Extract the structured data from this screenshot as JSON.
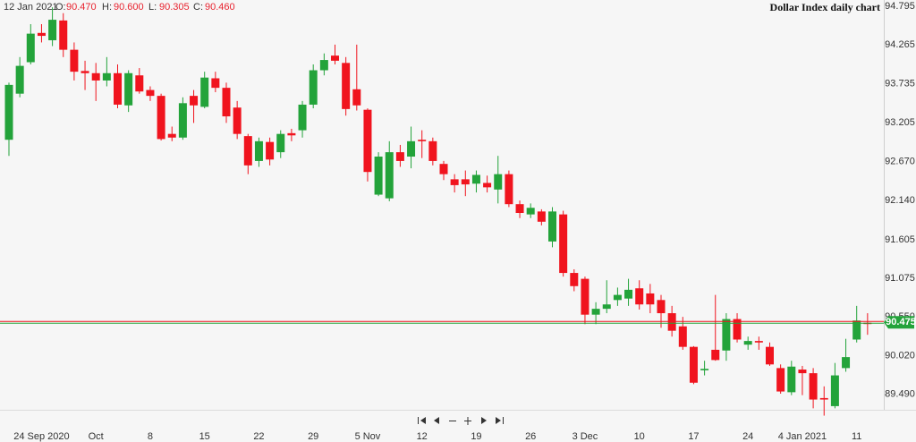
{
  "chart_data": {
    "type": "candlestick",
    "title": "Dollar Index daily chart",
    "header": {
      "date": "12 Jan 2021",
      "open_label": "O:",
      "open": {
        "value": 90.47,
        "label": "90.470"
      },
      "high_label": "H:",
      "high": {
        "value": 90.6,
        "label": "90.600"
      },
      "low_label": "L:",
      "low": {
        "value": 90.305,
        "label": "90.305"
      },
      "close_label": "C:",
      "close": {
        "value": 90.46,
        "label": "90.460"
      }
    },
    "categories": [
      null,
      null,
      null,
      "24 Sep 2020",
      null,
      null,
      null,
      null,
      "Oct",
      null,
      null,
      null,
      null,
      "8",
      null,
      null,
      null,
      null,
      "15",
      null,
      null,
      null,
      null,
      "22",
      null,
      null,
      null,
      null,
      "29",
      null,
      null,
      null,
      null,
      "5 Nov",
      null,
      null,
      null,
      null,
      "12",
      null,
      null,
      null,
      null,
      "19",
      null,
      null,
      null,
      null,
      "26",
      null,
      null,
      null,
      null,
      "3 Dec",
      null,
      null,
      null,
      null,
      "10",
      null,
      null,
      null,
      null,
      "17",
      null,
      null,
      null,
      null,
      "24",
      null,
      null,
      null,
      null,
      "4 Jan 2021",
      null,
      null,
      null,
      null,
      "11",
      null
    ],
    "open": [
      92.97,
      93.6,
      94.03,
      94.43,
      94.33,
      94.6,
      94.2,
      93.91,
      93.88,
      93.78,
      93.88,
      93.44,
      93.85,
      93.65,
      93.57,
      93.05,
      93.0,
      93.57,
      93.42,
      93.81,
      93.68,
      93.41,
      93.02,
      92.68,
      92.94,
      92.8,
      93.06,
      93.1,
      93.45,
      93.92,
      94.12,
      94.02,
      93.66,
      93.38,
      92.22,
      92.17,
      92.8,
      92.74,
      92.97,
      92.95,
      92.64,
      92.43,
      92.43,
      92.37,
      92.38,
      92.29,
      92.5,
      92.09,
      91.95,
      91.99,
      91.58,
      91.95,
      91.15,
      91.07,
      90.58,
      90.66,
      90.78,
      90.8,
      90.94,
      90.87,
      90.78,
      90.6,
      90.42,
      90.14,
      89.82,
      90.1,
      90.09,
      90.52,
      90.17,
      90.22,
      90.14,
      89.85,
      89.52,
      89.83,
      89.78,
      89.44,
      89.33,
      89.85,
      90.24,
      90.47
    ],
    "high": [
      93.75,
      94.1,
      94.55,
      94.55,
      94.78,
      94.7,
      94.3,
      94.05,
      94.02,
      94.1,
      94.0,
      93.92,
      93.95,
      93.7,
      93.6,
      93.15,
      93.55,
      93.65,
      93.9,
      93.9,
      93.75,
      93.5,
      93.05,
      93.0,
      93.0,
      93.1,
      93.12,
      93.5,
      94.0,
      94.15,
      94.27,
      94.1,
      94.27,
      93.4,
      92.8,
      92.95,
      92.9,
      93.15,
      93.1,
      93.0,
      92.68,
      92.5,
      92.55,
      92.55,
      92.48,
      92.75,
      92.55,
      92.14,
      92.1,
      92.02,
      92.05,
      92.0,
      91.2,
      91.1,
      90.75,
      91.05,
      90.95,
      91.07,
      91.05,
      91.0,
      90.85,
      90.7,
      90.55,
      90.15,
      89.95,
      90.85,
      90.6,
      90.6,
      90.28,
      90.28,
      90.2,
      89.9,
      89.95,
      89.88,
      89.85,
      89.6,
      89.92,
      90.25,
      90.7,
      90.6
    ],
    "low": [
      92.75,
      93.55,
      94.0,
      94.3,
      94.25,
      94.1,
      93.78,
      93.65,
      93.5,
      93.7,
      93.4,
      93.35,
      93.6,
      93.5,
      92.96,
      92.95,
      92.97,
      93.2,
      93.4,
      93.62,
      93.2,
      92.98,
      92.5,
      92.6,
      92.62,
      92.72,
      92.95,
      93.0,
      93.4,
      93.85,
      94.0,
      93.3,
      93.37,
      92.4,
      92.2,
      92.13,
      92.6,
      92.58,
      92.72,
      92.62,
      92.42,
      92.25,
      92.2,
      92.25,
      92.25,
      92.1,
      92.05,
      91.9,
      91.9,
      91.8,
      91.5,
      91.1,
      90.9,
      90.45,
      90.45,
      90.6,
      90.7,
      90.7,
      90.65,
      90.6,
      90.4,
      90.28,
      90.1,
      89.63,
      89.75,
      89.95,
      89.95,
      90.2,
      90.1,
      90.1,
      89.88,
      89.5,
      89.48,
      89.48,
      89.3,
      89.2,
      89.3,
      89.8,
      90.2,
      90.305
    ],
    "close": [
      93.72,
      93.98,
      94.42,
      94.39,
      94.61,
      94.2,
      93.9,
      93.88,
      93.78,
      93.88,
      93.45,
      93.88,
      93.63,
      93.57,
      92.98,
      93.0,
      93.47,
      93.44,
      93.82,
      93.68,
      93.29,
      93.05,
      92.62,
      92.95,
      92.7,
      93.05,
      93.03,
      93.45,
      93.92,
      94.06,
      94.05,
      93.39,
      93.44,
      92.53,
      92.74,
      92.8,
      92.68,
      92.95,
      92.95,
      92.68,
      92.5,
      92.35,
      92.36,
      92.49,
      92.32,
      92.5,
      92.09,
      91.97,
      92.04,
      91.85,
      91.99,
      91.15,
      90.97,
      90.58,
      90.66,
      90.72,
      90.85,
      90.92,
      90.72,
      90.72,
      90.6,
      90.36,
      90.14,
      89.65,
      89.84,
      89.96,
      90.52,
      90.24,
      90.22,
      90.2,
      89.9,
      89.53,
      89.87,
      89.78,
      89.42,
      89.42,
      89.75,
      90.0,
      90.5,
      90.46
    ],
    "up_color": "#23a33a",
    "down_color": "#f0141e",
    "ylim": [
      89.28,
      94.88
    ],
    "yticks": [
      94.795,
      94.265,
      93.735,
      93.205,
      {
        "value": 92.67,
        "label": "92.670"
      },
      {
        "value": 92.14,
        "label": "92.140"
      },
      91.605,
      91.075,
      {
        "value": 90.55,
        "label": "90.550"
      },
      {
        "value": 90.02,
        "label": "90.020"
      },
      {
        "value": 89.49,
        "label": "89.490"
      }
    ],
    "current_price": {
      "value": 90.475,
      "label": "90.475"
    }
  }
}
